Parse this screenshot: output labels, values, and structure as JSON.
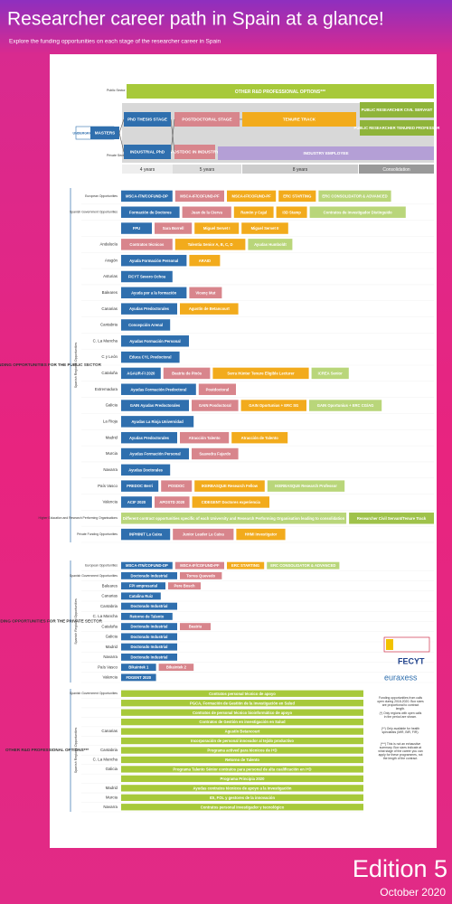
{
  "header": {
    "title": "Researcher career path in Spain at a glance!",
    "subtitle": "Explore the funding opportunities on each stage of the researcher career in Spain"
  },
  "flow": {
    "other_rd": "OTHER R&D PROFESSIONAL OPTIONS***",
    "public_sector": "Public Sector",
    "private_sector": "Private Sector",
    "undergrad": "UNDERGRADUATE DEGREE",
    "masters": "MASTERS",
    "phd": "PhD THESIS STAGE",
    "industrial_phd": "INDUSTRIAL PhD",
    "postdoc": "POSTDOCTORAL STAGE",
    "postdoc_industry": "POSTDOC IN INDUSTRY",
    "tenure": "TENURE TRACK",
    "civil_servant": "PUBLIC RESEARCHER CIVIL SERVANT",
    "tenured": "PUBLIC RESEARCHER TENURED PROFESSOR",
    "industry": "INDUSTRY EMPLOYEE",
    "timeline": [
      "4 years",
      "5 years",
      "8 years",
      "Consolidation"
    ]
  },
  "sections": [
    {
      "title": "FUNDING OPPORTUNITIES FOR THE PUBLIC SECTOR",
      "subtitle": "Spanish Regional Opportunities",
      "rows": [
        {
          "label": "European Opportunities",
          "boxes": [
            {
              "text": "MSCA-ITN/COFUND-DP",
              "color": "#2f6fae"
            },
            {
              "text": "MSCA-IF/COFUND-PF",
              "color": "#d8858c"
            },
            {
              "text": "MSCA-IF/COFUND-PF",
              "color": "#f2ab1c"
            },
            {
              "text": "ERC STARTING",
              "color": "#f2ab1c"
            },
            {
              "text": "ERC CONSOLIDATOR & ADVANCED",
              "color": "#b9d67a"
            }
          ]
        },
        {
          "label": "Spanish Government Opportunities",
          "boxes": [
            {
              "text": "Formación de Doctores",
              "color": "#2f6fae"
            },
            {
              "text": "Juan de la Cierva",
              "color": "#d8858c"
            },
            {
              "text": "Ramón y Cajal",
              "color": "#f2ab1c"
            },
            {
              "text": "I3D Stamp",
              "color": "#f2ab1c"
            },
            {
              "text": "Contratos de Investigador Distinguido",
              "color": "#b9d67a"
            }
          ]
        },
        {
          "label": "",
          "boxes": [
            {
              "text": "FPU",
              "color": "#2f6fae"
            },
            {
              "text": "Sara Borrell",
              "color": "#d8858c"
            },
            {
              "text": "Miguel Servet I",
              "color": "#f2ab1c"
            },
            {
              "text": "Miguel Servet II",
              "color": "#f2ab1c"
            }
          ]
        },
        {
          "label": "Andalucía",
          "boxes": [
            {
              "text": "Contratos técnicos",
              "color": "#d8858c"
            },
            {
              "text": "Talentia Senior A, B, C, D",
              "color": "#f2ab1c"
            },
            {
              "text": "Ayudas Humboldt",
              "color": "#b9d67a"
            }
          ]
        },
        {
          "label": "Aragón",
          "boxes": [
            {
              "text": "Ayuda Formación Personal",
              "color": "#2f6fae"
            },
            {
              "text": "ARAID",
              "color": "#f2ab1c"
            }
          ]
        },
        {
          "label": "Asturias",
          "boxes": [
            {
              "text": "FICYT Severo Ochoa",
              "color": "#2f6fae"
            }
          ]
        },
        {
          "label": "Baleares",
          "boxes": [
            {
              "text": "Ayuda por a la formación",
              "color": "#2f6fae"
            },
            {
              "text": "Vicenç Mut",
              "color": "#d8858c"
            }
          ]
        },
        {
          "label": "Canarias",
          "boxes": [
            {
              "text": "Ayudas Predoctorales",
              "color": "#2f6fae"
            },
            {
              "text": "Agustín de Betancourt",
              "color": "#f2ab1c"
            }
          ]
        },
        {
          "label": "Cantabria",
          "boxes": [
            {
              "text": "Concepción Arenal",
              "color": "#2f6fae"
            }
          ]
        },
        {
          "label": "C. La Mancha",
          "boxes": [
            {
              "text": "Ayudas Formación Personal",
              "color": "#2f6fae"
            }
          ]
        },
        {
          "label": "C y León",
          "boxes": [
            {
              "text": "Educa CYL Predoctoral",
              "color": "#2f6fae"
            }
          ]
        },
        {
          "label": "Cataluña",
          "boxes": [
            {
              "text": "AGAUR-FI 2020",
              "color": "#2f6fae"
            },
            {
              "text": "Beatriu de Pinós",
              "color": "#d8858c"
            },
            {
              "text": "Serra Húnter Tenure Eligible Lecturer",
              "color": "#f2ab1c"
            },
            {
              "text": "ICREA Senior",
              "color": "#b9d67a"
            }
          ]
        },
        {
          "label": "Extremadura",
          "boxes": [
            {
              "text": "Ayudas Formación Predoctoral",
              "color": "#2f6fae"
            },
            {
              "text": "Postdoctoral",
              "color": "#d8858c"
            }
          ]
        },
        {
          "label": "Galicia",
          "boxes": [
            {
              "text": "GAIN Ayudas Predoctorales",
              "color": "#2f6fae"
            },
            {
              "text": "GAIN Posdoctoral",
              "color": "#d8858c"
            },
            {
              "text": "GAIN Oportunius + ERC SG",
              "color": "#f2ab1c"
            },
            {
              "text": "GAIN Oportunius + ERC CG/AG",
              "color": "#b9d67a"
            }
          ]
        },
        {
          "label": "La Rioja",
          "boxes": [
            {
              "text": "Ayudas La Rioja Universidad",
              "color": "#2f6fae"
            }
          ]
        },
        {
          "label": "Madrid",
          "boxes": [
            {
              "text": "Ayudas Predoctorales",
              "color": "#2f6fae"
            },
            {
              "text": "Atracción Talento",
              "color": "#d8858c"
            },
            {
              "text": "Atracción de Talento",
              "color": "#f2ab1c"
            }
          ]
        },
        {
          "label": "Murcia",
          "boxes": [
            {
              "text": "Ayudas Formación Personal",
              "color": "#2f6fae"
            },
            {
              "text": "Saavedra Fajardo",
              "color": "#d8858c"
            }
          ]
        },
        {
          "label": "Navarra",
          "boxes": [
            {
              "text": "Ayudas Doctorales",
              "color": "#2f6fae"
            }
          ]
        },
        {
          "label": "País Vasco",
          "boxes": [
            {
              "text": "PREDOC Berri",
              "color": "#2f6fae"
            },
            {
              "text": "POSDOC",
              "color": "#d8858c"
            },
            {
              "text": "IKERBASQUE Research Fellow",
              "color": "#f2ab1c"
            },
            {
              "text": "IKERBASQUE Research Professor",
              "color": "#b9d67a"
            }
          ]
        },
        {
          "label": "Valencia",
          "boxes": [
            {
              "text": "ACIF 2020",
              "color": "#2f6fae"
            },
            {
              "text": "APOSTD 2020",
              "color": "#d8858c"
            },
            {
              "text": "CIDEGENT Doctores experiencia",
              "color": "#f2ab1c"
            }
          ]
        },
        {
          "label": "Higher Education and Research Performing Organisations",
          "boxes": [
            {
              "text": "Different contract opportunities specific of each University and Research Performing Organisation leading to consolidation",
              "color": "#b9d67a"
            },
            {
              "text": "Researcher Civil Servant/Tenure Track",
              "color": "#9fc24a"
            }
          ]
        },
        {
          "label": "Private Funding Opportunities",
          "boxes": [
            {
              "text": "INPHINIT La Caixa",
              "color": "#2f6fae"
            },
            {
              "text": "Junior Leader La Caixa",
              "color": "#d8858c"
            },
            {
              "text": "HHMI Investigator",
              "color": "#f2ab1c"
            }
          ]
        }
      ]
    },
    {
      "title": "FUNDING OPPORTUNITIES FOR THE PRIVATE SECTOR",
      "subtitle": "Spanish Regional Opportunities",
      "rows": [
        {
          "label": "European Opportunities",
          "boxes": [
            {
              "text": "MSCA-ITN/COFUND-DP",
              "color": "#2f6fae"
            },
            {
              "text": "MSCA-IF/COFUND-PF",
              "color": "#d8858c"
            },
            {
              "text": "ERC STARTING",
              "color": "#f2ab1c"
            },
            {
              "text": "ERC CONSOLIDATOR & ADVANCED",
              "color": "#b9d67a"
            }
          ]
        },
        {
          "label": "Spanish Government Opportunities",
          "boxes": [
            {
              "text": "Doctorado Industrial",
              "color": "#2f6fae"
            },
            {
              "text": "Torres Quevedo",
              "color": "#d8858c"
            }
          ]
        },
        {
          "label": "Baleares",
          "boxes": [
            {
              "text": "FPI empresarial",
              "color": "#2f6fae"
            },
            {
              "text": "Pere Bosch",
              "color": "#d8858c"
            }
          ]
        },
        {
          "label": "Canarias",
          "boxes": [
            {
              "text": "Catalina Ruiz",
              "color": "#2f6fae"
            }
          ]
        },
        {
          "label": "Cantabria",
          "boxes": [
            {
              "text": "Doctorado Industrial",
              "color": "#2f6fae"
            }
          ]
        },
        {
          "label": "C. La Mancha",
          "boxes": [
            {
              "text": "Retorno de Talento",
              "color": "#2f6fae"
            }
          ]
        },
        {
          "label": "Cataluña",
          "boxes": [
            {
              "text": "Doctorado Industrial",
              "color": "#2f6fae"
            },
            {
              "text": "Beatriu",
              "color": "#d8858c"
            }
          ]
        },
        {
          "label": "Galicia",
          "boxes": [
            {
              "text": "Doctorado Industrial",
              "color": "#2f6fae"
            }
          ]
        },
        {
          "label": "Madrid",
          "boxes": [
            {
              "text": "Doctorado Industrial",
              "color": "#2f6fae"
            }
          ]
        },
        {
          "label": "Navarra",
          "boxes": [
            {
              "text": "Doctorado Industrial",
              "color": "#2f6fae"
            }
          ]
        },
        {
          "label": "País Vasco",
          "boxes": [
            {
              "text": "Bikaintek 1",
              "color": "#2f6fae"
            },
            {
              "text": "Bikaintek 2",
              "color": "#d8858c"
            }
          ]
        },
        {
          "label": "Valencia",
          "boxes": [
            {
              "text": "FDGENT 2020",
              "color": "#2f6fae"
            }
          ]
        }
      ]
    },
    {
      "title": "OTHER R&D PROFESSIONAL OPTIONS***",
      "subtitle": "Spanish Regional Opportunities",
      "rows": [
        {
          "label": "Spanish Government Opportunities",
          "boxes": [
            {
              "text": "Contratos personal técnico de apoyo",
              "color": "#a7c93a"
            }
          ]
        },
        {
          "label": "",
          "boxes": [
            {
              "text": "PGCA, Formación de Gestión de la investigación en Salud",
              "color": "#a7c93a"
            }
          ]
        },
        {
          "label": "",
          "boxes": [
            {
              "text": "Contratos de personal técnico bioinformático de apoyo",
              "color": "#a7c93a"
            }
          ]
        },
        {
          "label": "",
          "boxes": [
            {
              "text": "Contratos de Gestión en investigación en Salud",
              "color": "#a7c93a"
            }
          ]
        },
        {
          "label": "Canarias",
          "boxes": [
            {
              "text": "Agustín Betancourt",
              "color": "#a7c93a"
            }
          ]
        },
        {
          "label": "",
          "boxes": [
            {
              "text": "Incorporación de personal innovador al tejido productivo",
              "color": "#a7c93a"
            }
          ]
        },
        {
          "label": "Cantabria",
          "boxes": [
            {
              "text": "Programa actived para técnicos de I+D",
              "color": "#a7c93a"
            }
          ]
        },
        {
          "label": "C. La Mancha",
          "boxes": [
            {
              "text": "Retorno de Talento",
              "color": "#a7c93a"
            }
          ]
        },
        {
          "label": "Galicia",
          "boxes": [
            {
              "text": "Programa Talento Sénior contratos para personal de alta cualificación en I+D",
              "color": "#a7c93a"
            }
          ]
        },
        {
          "label": "",
          "boxes": [
            {
              "text": "Programa Principia 2020",
              "color": "#a7c93a"
            }
          ]
        },
        {
          "label": "Madrid",
          "boxes": [
            {
              "text": "Ayudas contratos técnicos de apoyo a la investigación",
              "color": "#a7c93a"
            }
          ]
        },
        {
          "label": "Murcia",
          "boxes": [
            {
              "text": "IDI, FOL y gestores de la innovación",
              "color": "#a7c93a"
            }
          ]
        },
        {
          "label": "Navarra",
          "boxes": [
            {
              "text": "Contratos personal investigador y tecnológico",
              "color": "#a7c93a"
            }
          ]
        }
      ]
    }
  ],
  "logos": {
    "fecyt": "FECYT",
    "euraxess": "euraxess"
  },
  "notes": [
    "Funding opportunities from calls open during 2018-2020. Box sizes are proportional to contract length.",
    "(*) Only regions with open calls in the period are shown.",
    "(**) Only available for health specialists (MIR, BIR, FIR).",
    "(***) This is not an exhaustive summary. Box sizes indicate at what stage of the career you can apply for these programmes, not the length of the contract."
  ],
  "footer": {
    "edition": "Edition 5",
    "date": "October 2020"
  }
}
